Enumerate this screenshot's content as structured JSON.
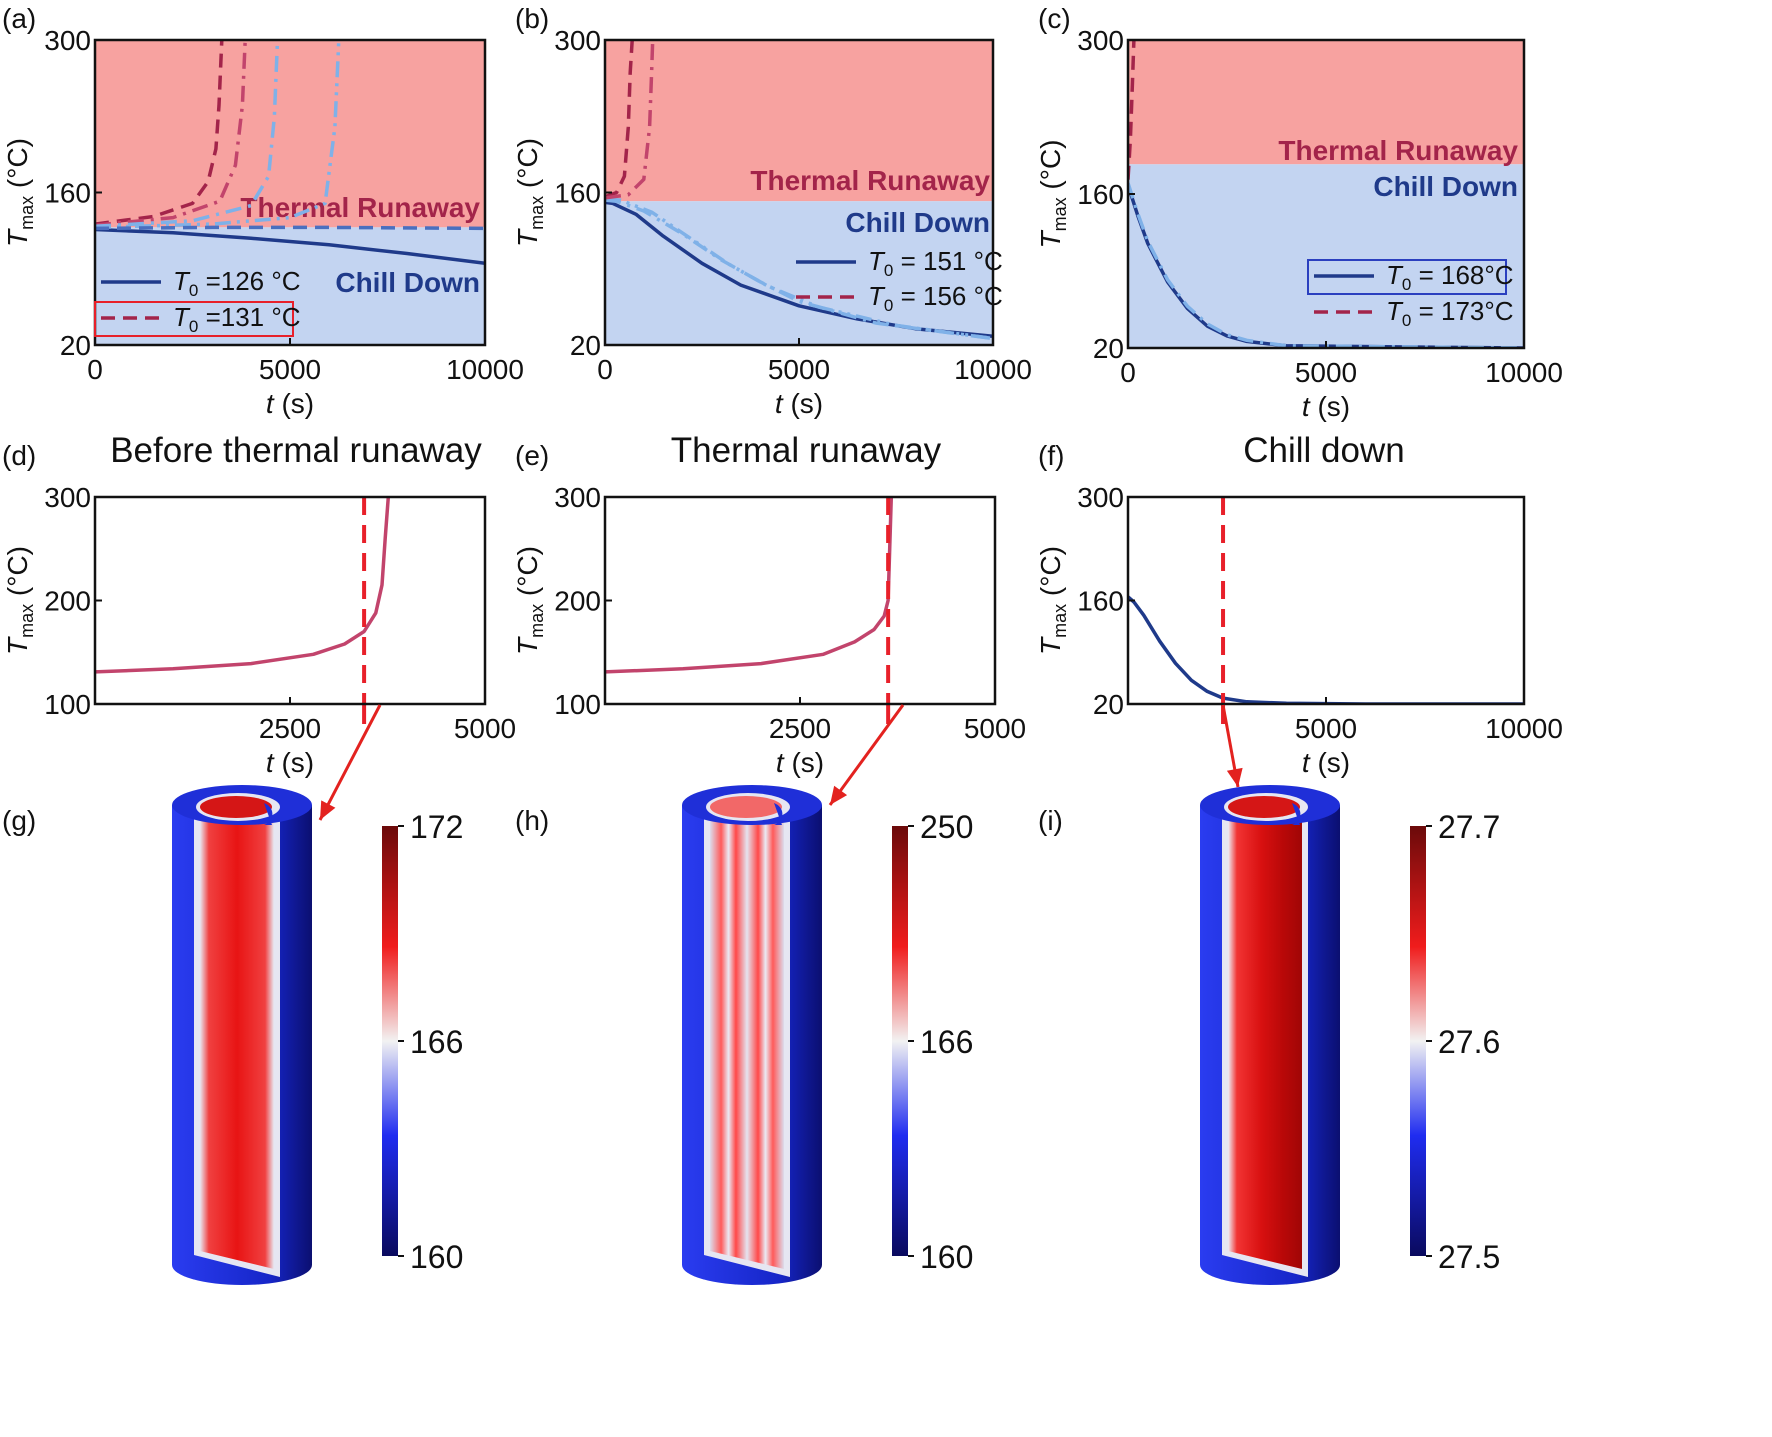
{
  "panel_labels": [
    "(a)",
    "(b)",
    "(c)",
    "(d)",
    "(e)",
    "(f)",
    "(g)",
    "(h)",
    "(i)"
  ],
  "titles": {
    "d": "Before thermal runaway",
    "e": "Thermal runaway",
    "f": "Chill down"
  },
  "axis": {
    "ylabel_main": "T",
    "ylabel_sub": "max",
    "ylabel_unit": "(°C)",
    "xlabel_main": "t",
    "xlabel_unit": "(s)"
  },
  "regions": {
    "runaway": "Thermal Runaway",
    "chill": "Chill Down"
  },
  "colors": {
    "runaway_bg": "#f7a2a0",
    "chill_bg": "#c3d4f1",
    "navy": "#1f3a8a",
    "maroon": "#a3244a",
    "pink": "#c2446c",
    "light_blue": "#7fb1e8",
    "dashed_marker": "#e8202a",
    "arrow": "#e3221f"
  },
  "chart_data": [
    {
      "id": "a",
      "type": "line",
      "xlim": [
        0,
        10000
      ],
      "ylim": [
        20,
        300
      ],
      "xticks": [
        "0",
        "5000",
        "10000"
      ],
      "yticks": [
        "20",
        "160",
        "300"
      ],
      "boundary": 128,
      "series": [
        {
          "name": "T0 = 126 °C",
          "style": "solid",
          "color": "#1f3a8a",
          "x": [
            0,
            2000,
            4000,
            6000,
            8000,
            10000
          ],
          "y": [
            126,
            123,
            118,
            112,
            104,
            95
          ]
        },
        {
          "name": "T0 = 131 °C",
          "style": "dash",
          "color": "#a3244a",
          "x": [
            0,
            1500,
            2500,
            2900,
            3100,
            3180,
            3250
          ],
          "y": [
            131,
            138,
            150,
            170,
            200,
            240,
            300
          ]
        },
        {
          "name": "mid red",
          "style": "dashdot",
          "color": "#c2446c",
          "x": [
            0,
            2000,
            3200,
            3600,
            3780,
            3850
          ],
          "y": [
            130,
            137,
            152,
            185,
            240,
            300
          ]
        },
        {
          "name": "light blue 1",
          "style": "dashdot",
          "color": "#7fb1e8",
          "x": [
            0,
            2500,
            4000,
            4450,
            4600,
            4680
          ],
          "y": [
            129,
            134,
            148,
            175,
            230,
            300
          ]
        },
        {
          "name": "light blue 2",
          "style": "dashdotdot",
          "color": "#7fb1e8",
          "x": [
            0,
            3000,
            5000,
            5900,
            6150,
            6250
          ],
          "y": [
            128,
            131,
            137,
            150,
            220,
            300
          ]
        },
        {
          "name": "mid blue dash",
          "style": "dash",
          "color": "#4a6fbf",
          "x": [
            0,
            3000,
            6000,
            10000
          ],
          "y": [
            127,
            128,
            128,
            127
          ]
        }
      ],
      "legend": [
        {
          "label": "T0 =126 °C",
          "base": "T",
          "sub": "0",
          "rest": " =126 °C",
          "color": "#1f3a8a",
          "style": "solid",
          "boxed": false
        },
        {
          "label": "T0 =131 °C",
          "base": "T",
          "sub": "0",
          "rest": " =131 °C",
          "color": "#a3244a",
          "style": "dash",
          "boxed": true,
          "box_color": "#e8202a"
        }
      ]
    },
    {
      "id": "b",
      "type": "line",
      "xlim": [
        0,
        10000
      ],
      "ylim": [
        20,
        300
      ],
      "xticks": [
        "0",
        "5000",
        "10000"
      ],
      "yticks": [
        "20",
        "160",
        "300"
      ],
      "boundary": 152,
      "series": [
        {
          "name": "T0 = 151 °C",
          "style": "solid",
          "color": "#1f3a8a",
          "x": [
            0,
            200,
            800,
            1500,
            2500,
            3500,
            5000,
            6500,
            8000,
            10000
          ],
          "y": [
            151,
            150,
            140,
            120,
            95,
            75,
            56,
            44,
            35,
            28
          ]
        },
        {
          "name": "light blue 1",
          "style": "dashdot",
          "color": "#7fb1e8",
          "x": [
            0,
            300,
            1000,
            2000,
            3000,
            4000,
            5000,
            7000,
            10000
          ],
          "y": [
            153,
            152,
            143,
            122,
            98,
            78,
            60,
            40,
            26
          ]
        },
        {
          "name": "light blue 2",
          "style": "dashdotdot",
          "color": "#7fb1e8",
          "x": [
            0,
            400,
            1200,
            2200,
            3200,
            4200,
            5500,
            7500,
            10000
          ],
          "y": [
            154,
            153,
            142,
            118,
            94,
            74,
            55,
            38,
            26
          ]
        },
        {
          "name": "T0 = 156 °C",
          "style": "dash",
          "color": "#a3244a",
          "x": [
            0,
            300,
            500,
            600,
            650,
            700
          ],
          "y": [
            156,
            160,
            175,
            220,
            270,
            300
          ]
        },
        {
          "name": "mid red",
          "style": "dashdot",
          "color": "#c2446c",
          "x": [
            0,
            600,
            1000,
            1150,
            1200,
            1230
          ],
          "y": [
            155,
            158,
            172,
            220,
            270,
            300
          ]
        }
      ],
      "legend": [
        {
          "label": "T0 = 151 °C",
          "base": "T",
          "sub": "0",
          "rest": " = 151 °C",
          "color": "#1f3a8a",
          "style": "solid",
          "boxed": false
        },
        {
          "label": "T0 = 156 °C",
          "base": "T",
          "sub": "0",
          "rest": " = 156 °C",
          "color": "#a3244a",
          "style": "dash",
          "boxed": false
        }
      ]
    },
    {
      "id": "c",
      "type": "line",
      "xlim": [
        0,
        10000
      ],
      "ylim": [
        20,
        300
      ],
      "xticks": [
        "0",
        "5000",
        "10000"
      ],
      "yticks": [
        "20",
        "160",
        "300"
      ],
      "boundary": 187,
      "series": [
        {
          "name": "T0 = 168°C",
          "style": "solid",
          "color": "#1f3a8a",
          "x": [
            0,
            250,
            500,
            1000,
            1500,
            2000,
            2500,
            3000,
            4000,
            10000
          ],
          "y": [
            168,
            140,
            115,
            80,
            56,
            40,
            31,
            26,
            22,
            20
          ]
        },
        {
          "name": "light blue",
          "style": "dashdot",
          "color": "#7fb1e8",
          "x": [
            0,
            250,
            500,
            1000,
            1500,
            2000,
            2500,
            3000,
            4000,
            10000
          ],
          "y": [
            170,
            142,
            117,
            82,
            58,
            42,
            32,
            27,
            22,
            20
          ]
        },
        {
          "name": "T0 = 173°C",
          "style": "dash",
          "color": "#a3244a",
          "x": [
            0,
            60,
            110,
            150
          ],
          "y": [
            173,
            210,
            260,
            300
          ]
        }
      ],
      "legend": [
        {
          "label": "T0 = 168°C",
          "base": "T",
          "sub": "0",
          "rest": " = 168°C",
          "color": "#1f3a8a",
          "style": "solid",
          "boxed": true,
          "box_color": "#2a3fbf"
        },
        {
          "label": "T0 = 173°C",
          "base": "T",
          "sub": "0",
          "rest": " = 173°C",
          "color": "#a3244a",
          "style": "dash",
          "boxed": false
        }
      ]
    },
    {
      "id": "d",
      "type": "line",
      "xlim": [
        0,
        5000
      ],
      "ylim": [
        100,
        300
      ],
      "xticks": [
        "2500",
        "5000"
      ],
      "yticks": [
        "100",
        "200",
        "300"
      ],
      "marker_x": 3450,
      "series": [
        {
          "name": "Tmax",
          "style": "solid",
          "color": "#c2446c",
          "x": [
            0,
            1000,
            2000,
            2800,
            3200,
            3450,
            3600,
            3680,
            3720,
            3760
          ],
          "y": [
            131,
            134,
            139,
            148,
            158,
            170,
            188,
            215,
            260,
            300
          ]
        }
      ]
    },
    {
      "id": "e",
      "type": "line",
      "xlim": [
        0,
        5000
      ],
      "ylim": [
        100,
        300
      ],
      "xticks": [
        "2500",
        "5000"
      ],
      "yticks": [
        "100",
        "200",
        "300"
      ],
      "marker_x": 3630,
      "series": [
        {
          "name": "Tmax",
          "style": "solid",
          "color": "#c2446c",
          "x": [
            0,
            1000,
            2000,
            2800,
            3200,
            3450,
            3580,
            3630,
            3650,
            3670
          ],
          "y": [
            131,
            134,
            139,
            148,
            160,
            172,
            185,
            200,
            250,
            300
          ]
        }
      ]
    },
    {
      "id": "f",
      "type": "line",
      "xlim": [
        0,
        10000
      ],
      "ylim": [
        20,
        300
      ],
      "xticks": [
        "5000",
        "10000"
      ],
      "yticks": [
        "20",
        "160",
        "300"
      ],
      "marker_x": 2400,
      "series": [
        {
          "name": "Tmax",
          "style": "solid",
          "color": "#1f3a8a",
          "x": [
            0,
            150,
            400,
            800,
            1200,
            1600,
            2000,
            2400,
            3000,
            4000,
            6000,
            10000
          ],
          "y": [
            165,
            158,
            140,
            105,
            75,
            52,
            37,
            28,
            23,
            21,
            20,
            20
          ]
        }
      ]
    }
  ],
  "colorbars": [
    {
      "id": "g",
      "ticks": [
        "172",
        "166",
        "160"
      ]
    },
    {
      "id": "h",
      "ticks": [
        "250",
        "166",
        "160"
      ]
    },
    {
      "id": "i",
      "ticks": [
        "27.7",
        "27.6",
        "27.5"
      ]
    }
  ]
}
